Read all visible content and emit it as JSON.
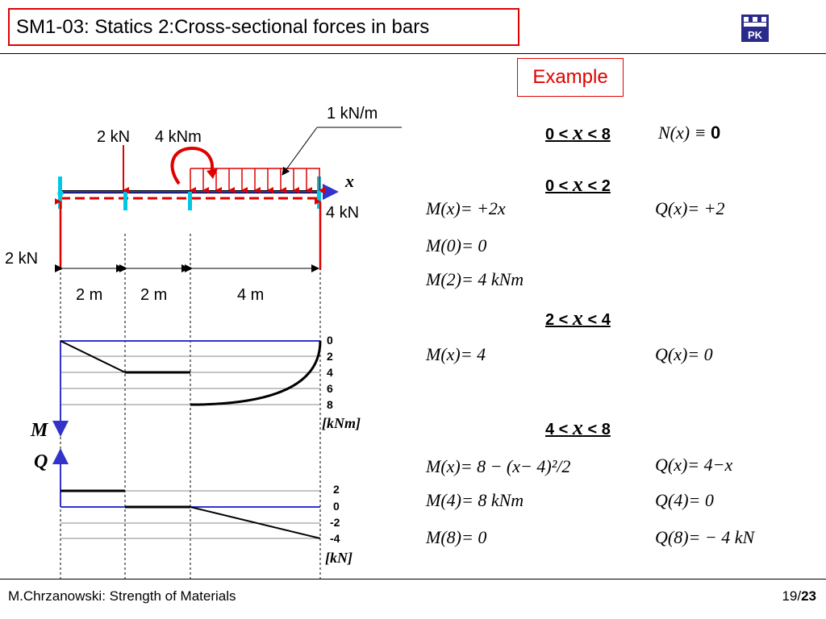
{
  "header": {
    "title": "SM1-03: Statics 2:Cross-sectional forces in bars",
    "logo_text": "PK",
    "example_label": "Example"
  },
  "footer": {
    "left": "M.Chrzanowski: Strength of Materials",
    "page_current": "19/",
    "page_total": "23"
  },
  "beam": {
    "axis_label": "x",
    "loads": {
      "point_force": "2 kN",
      "moment": "4 kNm",
      "distributed": "1 kN/m"
    },
    "reactions": {
      "left": "2 kN",
      "right": "4 kN"
    },
    "spans": [
      "2 m",
      "2 m",
      "4 m"
    ]
  },
  "moment_diagram": {
    "label": "M",
    "unit": "[kNm]",
    "scale_labels": [
      "0",
      "2",
      "4",
      "6",
      "8"
    ]
  },
  "shear_diagram": {
    "label": "Q",
    "unit": "[kN]",
    "scale_labels": [
      "2",
      "0",
      "-2",
      "-4"
    ]
  },
  "equations": {
    "axial": {
      "range_left": "0 <",
      "range_var": "x",
      "range_right": "< 8",
      "formula": "N(x) ≡",
      "value": "0"
    },
    "segment1": {
      "range_left": "0 <",
      "range_var": "x",
      "range_right": "< 2",
      "m": "M(x)= +2x",
      "q": "Q(x)= +2",
      "m0": "M(0)= 0",
      "m2": "M(2)= 4 kNm"
    },
    "segment2": {
      "range_left": "2 <",
      "range_var": "x",
      "range_right": "< 4",
      "m": "M(x)= 4",
      "q": "Q(x)=  0"
    },
    "segment3": {
      "range_left": "4 <",
      "range_var": "x",
      "range_right": "< 8",
      "m": "M(x)= 8 − (x− 4)²/2",
      "q": "Q(x)= 4−x",
      "m4": "M(4)= 8 kNm",
      "q4": "Q(4)= 0",
      "m8": "M(8)= 0",
      "q8": "Q(8)= − 4 kN"
    }
  },
  "colors": {
    "title_border": "#e00000",
    "load_red": "#e00000",
    "axis_blue": "#3333cc",
    "support_cyan": "#00c8e0"
  }
}
